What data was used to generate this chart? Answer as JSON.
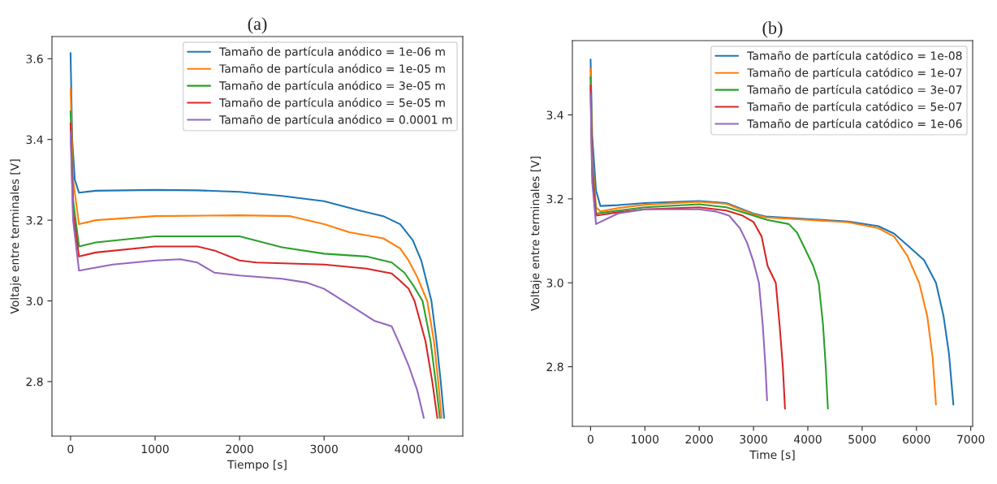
{
  "chart_data": [
    {
      "type": "line",
      "title": "(a)",
      "xlabel": "Tiempo [s]",
      "ylabel": "Voltaje entre terminales [V]",
      "xlim": [
        -220,
        4641
      ],
      "ylim": [
        2.665,
        3.655
      ],
      "xticks": [
        0,
        1000,
        2000,
        3000,
        4000
      ],
      "yticks": [
        2.8,
        {
          "value": 3,
          "label": "3.0"
        },
        3.2,
        3.4,
        3.6
      ],
      "legend": "top right",
      "grid": false,
      "series": [
        {
          "name": "Tamaño de partícula anódico = 1e-06 m",
          "color": "#1f77b4",
          "x": [
            0,
            20,
            50,
            100,
            300,
            1000,
            1500,
            2000,
            2500,
            3000,
            3400,
            3700,
            3900,
            4050,
            4150,
            4270,
            4330,
            4380,
            4420
          ],
          "values": [
            3.614,
            3.4,
            3.3,
            3.268,
            3.273,
            3.275,
            3.274,
            3.27,
            3.26,
            3.247,
            3.225,
            3.21,
            3.19,
            3.15,
            3.1,
            3.0,
            2.9,
            2.8,
            2.71
          ]
        },
        {
          "name": "Tamaño de partícula anódico = 1e-05 m",
          "color": "#ff7f0e",
          "x": [
            0,
            30,
            100,
            300,
            1000,
            2000,
            2600,
            3000,
            3300,
            3700,
            3900,
            4000,
            4100,
            4220,
            4300,
            4350,
            4390
          ],
          "values": [
            3.525,
            3.3,
            3.19,
            3.2,
            3.21,
            3.212,
            3.21,
            3.19,
            3.17,
            3.155,
            3.13,
            3.1,
            3.06,
            3.0,
            2.9,
            2.8,
            2.71
          ]
        },
        {
          "name": "Tamaño de partícula anódico = 3e-05 m",
          "color": "#2ca02c",
          "x": [
            0,
            30,
            100,
            300,
            1000,
            2000,
            2500,
            3000,
            3500,
            3800,
            3950,
            4050,
            4165,
            4260,
            4320,
            4370
          ],
          "values": [
            3.47,
            3.25,
            3.135,
            3.145,
            3.16,
            3.16,
            3.133,
            3.117,
            3.11,
            3.095,
            3.07,
            3.04,
            3.0,
            2.9,
            2.8,
            2.71
          ]
        },
        {
          "name": "Tamaño de partícula anódico = 5e-05 m",
          "color": "#d62728",
          "x": [
            0,
            30,
            100,
            300,
            1000,
            1500,
            1700,
            2000,
            2200,
            3000,
            3500,
            3800,
            3900,
            4000,
            4070,
            4200,
            4280,
            4340
          ],
          "values": [
            3.44,
            3.22,
            3.11,
            3.12,
            3.135,
            3.135,
            3.125,
            3.1,
            3.095,
            3.09,
            3.08,
            3.068,
            3.05,
            3.03,
            3.0,
            2.9,
            2.8,
            2.71
          ]
        },
        {
          "name": "Tamaño de partícula anódico = 0.0001 m",
          "color": "#9467bd",
          "x": [
            0,
            30,
            100,
            500,
            1000,
            1300,
            1500,
            1700,
            2000,
            2500,
            2800,
            3000,
            3300,
            3600,
            3800,
            3900,
            4000,
            4100,
            4180
          ],
          "values": [
            3.42,
            3.2,
            3.075,
            3.09,
            3.1,
            3.103,
            3.095,
            3.07,
            3.063,
            3.055,
            3.045,
            3.03,
            2.99,
            2.95,
            2.937,
            2.89,
            2.84,
            2.78,
            2.71
          ]
        }
      ]
    },
    {
      "type": "line",
      "title": "(b)",
      "xlabel": "Time [s]",
      "ylabel": "Voltaje entre terminales [V]",
      "xlim": [
        -335,
        7035
      ],
      "ylim": [
        2.658,
        3.577
      ],
      "xticks": [
        0,
        1000,
        2000,
        3000,
        4000,
        5000,
        6000,
        7000
      ],
      "yticks": [
        2.8,
        {
          "value": 3,
          "label": "3.0"
        },
        3.2,
        3.4
      ],
      "legend": "top right",
      "grid": false,
      "series": [
        {
          "name": "Tamaño de partícula catódico = 1e-08",
          "color": "#1f77b4",
          "x": [
            0,
            30,
            100,
            180,
            500,
            1000,
            2000,
            2500,
            3000,
            3220,
            4000,
            4750,
            5300,
            5590,
            5830,
            6140,
            6360,
            6500,
            6600,
            6680
          ],
          "values": [
            3.532,
            3.35,
            3.22,
            3.183,
            3.185,
            3.19,
            3.195,
            3.19,
            3.165,
            3.158,
            3.152,
            3.146,
            3.135,
            3.117,
            3.09,
            3.054,
            3.0,
            2.92,
            2.83,
            2.71
          ]
        },
        {
          "name": "Tamaño de partícula catódico = 1e-07",
          "color": "#ff7f0e",
          "x": [
            0,
            30,
            100,
            180,
            500,
            1000,
            2000,
            2500,
            3000,
            3220,
            4000,
            4750,
            5300,
            5590,
            5830,
            6050,
            6200,
            6300,
            6360
          ],
          "values": [
            3.51,
            3.3,
            3.18,
            3.17,
            3.178,
            3.186,
            3.193,
            3.188,
            3.163,
            3.156,
            3.15,
            3.144,
            3.13,
            3.11,
            3.065,
            3.0,
            2.92,
            2.82,
            2.71
          ]
        },
        {
          "name": "Tamaño de partícula catódico = 3e-07",
          "color": "#2ca02c",
          "x": [
            0,
            30,
            100,
            500,
            1000,
            2000,
            2500,
            3000,
            3250,
            3650,
            3800,
            3940,
            4100,
            4200,
            4280,
            4330,
            4370
          ],
          "values": [
            3.49,
            3.28,
            3.165,
            3.172,
            3.18,
            3.187,
            3.18,
            3.16,
            3.15,
            3.14,
            3.12,
            3.083,
            3.04,
            3.0,
            2.9,
            2.8,
            2.7
          ]
        },
        {
          "name": "Tamaño de partícula catódico = 5e-07",
          "color": "#d62728",
          "x": [
            0,
            30,
            100,
            500,
            1000,
            2000,
            2500,
            2800,
            3000,
            3150,
            3260,
            3410,
            3480,
            3540,
            3580
          ],
          "values": [
            3.47,
            3.26,
            3.16,
            3.168,
            3.175,
            3.18,
            3.172,
            3.16,
            3.145,
            3.11,
            3.04,
            3.0,
            2.9,
            2.8,
            2.7
          ]
        },
        {
          "name": "Tamaño de partícula catódico = 1e-06",
          "color": "#9467bd",
          "x": [
            0,
            30,
            100,
            500,
            1000,
            2000,
            2300,
            2550,
            2750,
            2880,
            3000,
            3100,
            3170,
            3220,
            3250
          ],
          "values": [
            3.45,
            3.24,
            3.14,
            3.165,
            3.175,
            3.175,
            3.17,
            3.16,
            3.13,
            3.096,
            3.05,
            3.0,
            2.9,
            2.8,
            2.72
          ]
        }
      ]
    }
  ]
}
